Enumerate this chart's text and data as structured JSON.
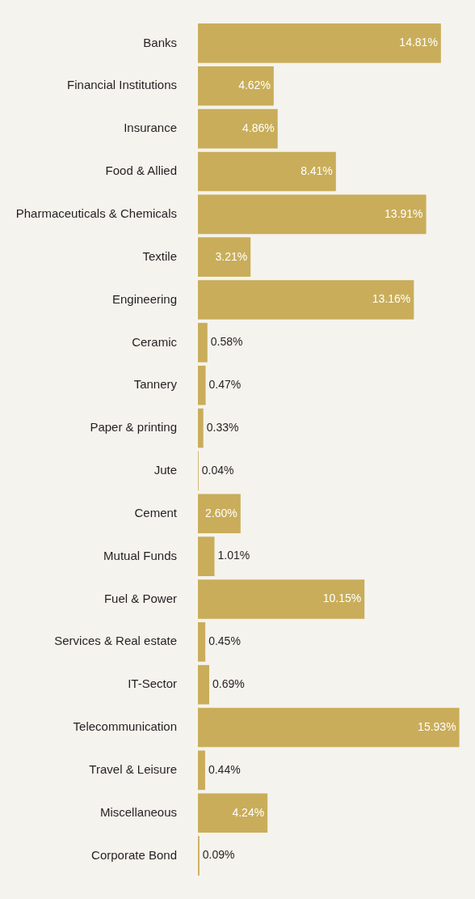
{
  "chart_data": {
    "type": "bar",
    "orientation": "horizontal",
    "categories": [
      "Banks",
      "Financial Institutions",
      "Insurance",
      "Food & Allied",
      "Pharmaceuticals & Chemicals",
      "Textile",
      "Engineering",
      "Ceramic",
      "Tannery",
      "Paper & printing",
      "Jute",
      "Cement",
      "Mutual Funds",
      "Fuel & Power",
      "Services & Real estate",
      "IT-Sector",
      "Telecommunication",
      "Travel & Leisure",
      "Miscellaneous",
      "Corporate Bond"
    ],
    "values": [
      14.81,
      4.62,
      4.86,
      8.41,
      13.91,
      3.21,
      13.16,
      0.58,
      0.47,
      0.33,
      0.04,
      2.6,
      1.01,
      10.15,
      0.45,
      0.69,
      15.93,
      0.44,
      4.24,
      0.09
    ],
    "value_labels": [
      "14.81%",
      "4.62%",
      "4.86%",
      "8.41%",
      "13.91%",
      "3.21%",
      "13.16%",
      "0.58%",
      "0.47%",
      "0.33%",
      "0.04%",
      "2.60%",
      "1.01%",
      "10.15%",
      "0.45%",
      "0.69%",
      "15.93%",
      "0.44%",
      "4.24%",
      "0.09%"
    ],
    "color": "#c9ad5a"
  }
}
